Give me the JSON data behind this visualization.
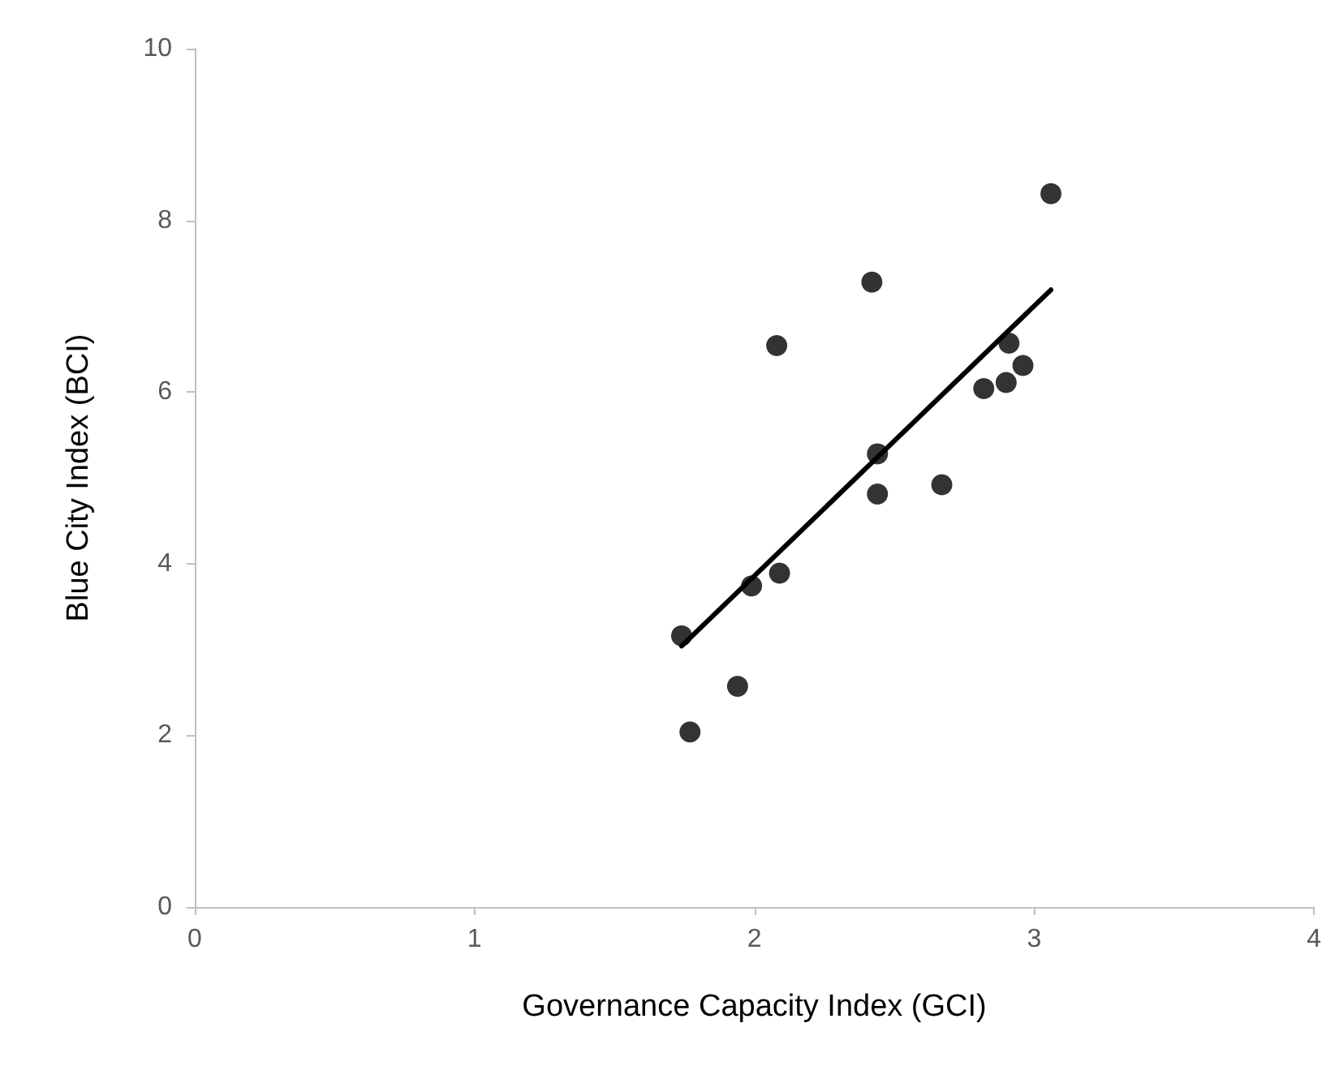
{
  "chart_data": {
    "type": "scatter",
    "xlabel": "Governance Capacity Index (GCI)",
    "ylabel": "Blue City Index (BCI)",
    "xlim": [
      0,
      4
    ],
    "xticks": [
      0,
      1,
      2,
      3,
      4
    ],
    "ylim": [
      0,
      10
    ],
    "yticks": [
      0,
      2,
      4,
      6,
      8,
      10
    ],
    "grid": false,
    "marker": "circle",
    "series": [
      {
        "color": "#000000",
        "x": [
          1.74,
          1.77,
          1.94,
          1.99,
          2.09,
          2.08,
          2.42,
          2.44,
          2.44,
          2.67,
          2.82,
          2.9,
          2.91,
          2.96,
          3.06
        ],
        "values": [
          3.16,
          2.04,
          2.57,
          3.74,
          3.89,
          6.54,
          7.28,
          5.28,
          4.81,
          4.92,
          6.04,
          6.11,
          6.57,
          6.31,
          8.31
        ]
      },
      {
        "type": "line",
        "color": "#000000",
        "marker": "none",
        "line_style": "solid",
        "x": [
          1.74,
          3.06
        ],
        "values": [
          3.04,
          7.19
        ]
      }
    ]
  }
}
